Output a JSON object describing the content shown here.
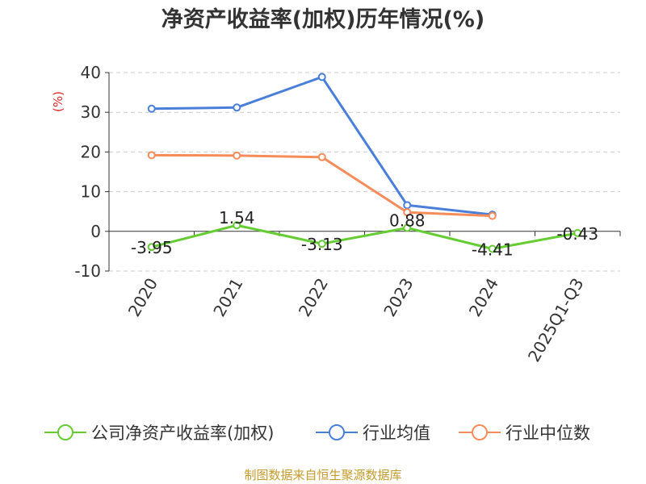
{
  "chart_data": {
    "type": "line",
    "title": "净资产收益率(加权)历年情况(%)",
    "ylabel": "(%)",
    "xlabel": "",
    "ylim": [
      -10,
      40
    ],
    "yticks": [
      40,
      30,
      20,
      10,
      0,
      -10
    ],
    "grid": true,
    "legend_position": "bottom",
    "categories": [
      "2020",
      "2021",
      "2022",
      "2023",
      "2024",
      "2025Q1-Q3"
    ],
    "series": [
      {
        "name": "公司净资产收益率(加权)",
        "color": "#66cc33",
        "values": [
          -3.95,
          1.54,
          -3.13,
          0.88,
          -4.41,
          -0.43
        ],
        "labels": [
          "-3.95",
          "1.54",
          "-3.13",
          "0.88",
          "-4.41",
          "-0.43"
        ]
      },
      {
        "name": "行业均值",
        "color": "#4a7fd9",
        "values": [
          30.9,
          31.2,
          38.9,
          6.6,
          4.2,
          null
        ]
      },
      {
        "name": "行业中位数",
        "color": "#f58c5a",
        "values": [
          19.2,
          19.1,
          18.7,
          4.8,
          3.9,
          null
        ]
      }
    ]
  },
  "footer": {
    "source": "制图数据来自恒生聚源数据库"
  }
}
